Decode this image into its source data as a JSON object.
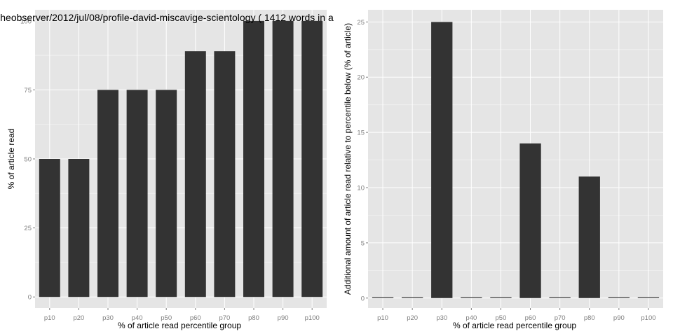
{
  "chart_data": [
    {
      "type": "bar",
      "title": "heobserver/2012/jul/08/profile-david-miscavige-scientology ( 1412 words in a",
      "xlabel": "% of article read percentile group",
      "ylabel": "% of article read",
      "categories": [
        "p10",
        "p20",
        "p30",
        "p40",
        "p50",
        "p60",
        "p70",
        "p80",
        "p90",
        "p100"
      ],
      "values": [
        50,
        50,
        75,
        75,
        75,
        89,
        89,
        100,
        100,
        100
      ],
      "ylim": [
        -4,
        104
      ],
      "yticks": [
        0,
        25,
        50,
        75,
        100
      ],
      "grid": true,
      "legend": "none"
    },
    {
      "type": "bar",
      "title": "",
      "xlabel": "% of article read percentile group",
      "ylabel": "Additional amount of article read relative to percentile below (% of article)",
      "categories": [
        "p10",
        "p20",
        "p30",
        "p40",
        "p50",
        "p60",
        "p70",
        "p80",
        "p90",
        "p100"
      ],
      "values": [
        0,
        0,
        25,
        0,
        0,
        14,
        0,
        11,
        0,
        0
      ],
      "ylim": [
        -0.9,
        26.1
      ],
      "yticks": [
        0,
        5,
        10,
        15,
        20,
        25
      ],
      "grid": true,
      "legend": "none"
    }
  ],
  "colors": {
    "panel_background": "#e5e5e5",
    "bar_fill": "#333333",
    "grid_major": "#ffffff",
    "grid_minor": "#f2f2f2",
    "tick_text": "#7f7f7f"
  }
}
